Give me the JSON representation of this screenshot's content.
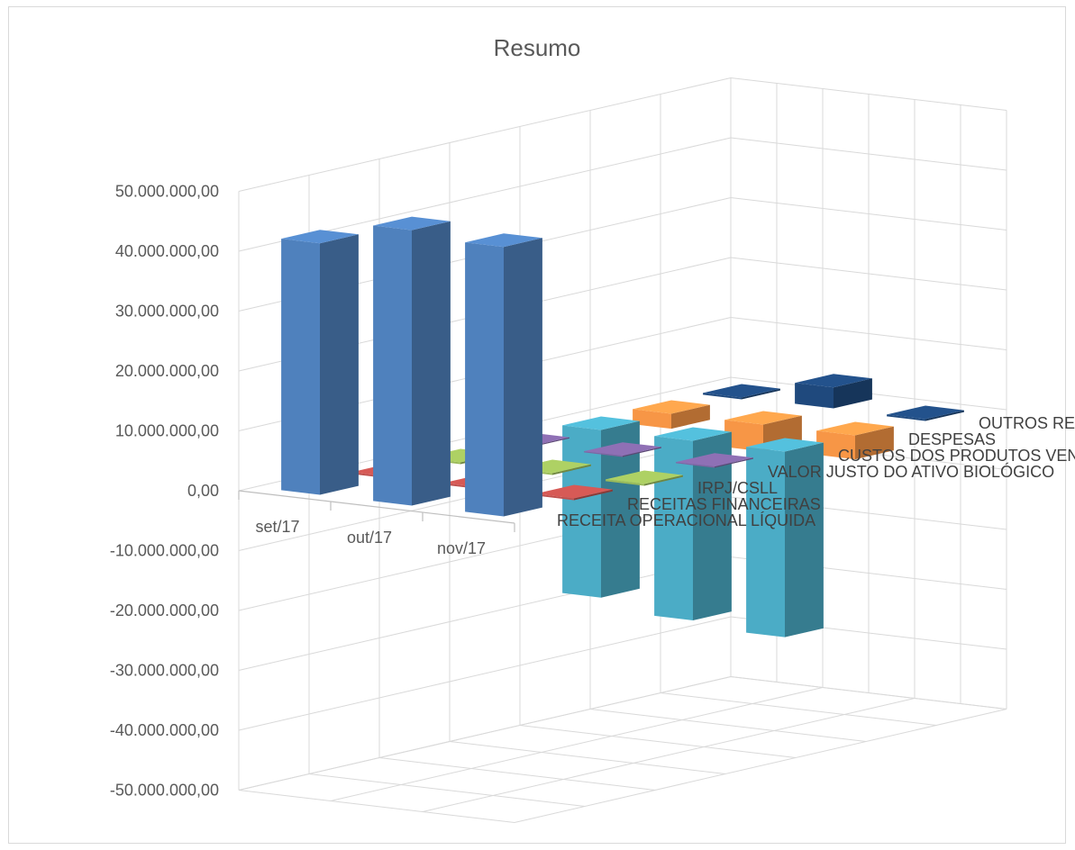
{
  "chart_data": {
    "type": "bar",
    "title": "Resumo",
    "categories": [
      "set/17",
      "out/17",
      "nov/17"
    ],
    "yticks": [
      "50.000.000,00",
      "40.000.000,00",
      "30.000.000,00",
      "20.000.000,00",
      "10.000.000,00",
      "0,00",
      "-10.000.000,00",
      "-20.000.000,00",
      "-30.000.000,00",
      "-40.000.000,00",
      "-50.000.000,00"
    ],
    "ylim": [
      -50000000,
      50000000
    ],
    "series": [
      {
        "name": "RECEITA OPERACIONAL LÍQUIDA",
        "color": "#4f81bd",
        "values": [
          42000000,
          46000000,
          45000000
        ]
      },
      {
        "name": "RECEITAS FINANCEIRAS",
        "color": "#c0504d",
        "values": [
          300000,
          300000,
          300000
        ]
      },
      {
        "name": "IRPJ/CSLL",
        "color": "#9bbb59",
        "values": [
          -300000,
          -300000,
          -300000
        ]
      },
      {
        "name": "VALOR JUSTO DO ATIVO BIOLÓGICO",
        "color": "#8064a2",
        "values": [
          -200000,
          200000,
          200000
        ]
      },
      {
        "name": "CUSTOS DOS PRODUTOS VENDIDOS",
        "color": "#4bacc6",
        "values": [
          -28000000,
          -30000000,
          -31000000
        ]
      },
      {
        "name": "DESPESAS",
        "color": "#f79646",
        "values": [
          -2500000,
          -4500000,
          -4000000
        ]
      },
      {
        "name": "OUTROS RESULTADOS",
        "color": "#1f497d",
        "values": [
          -300000,
          3500000,
          -300000
        ]
      }
    ]
  }
}
